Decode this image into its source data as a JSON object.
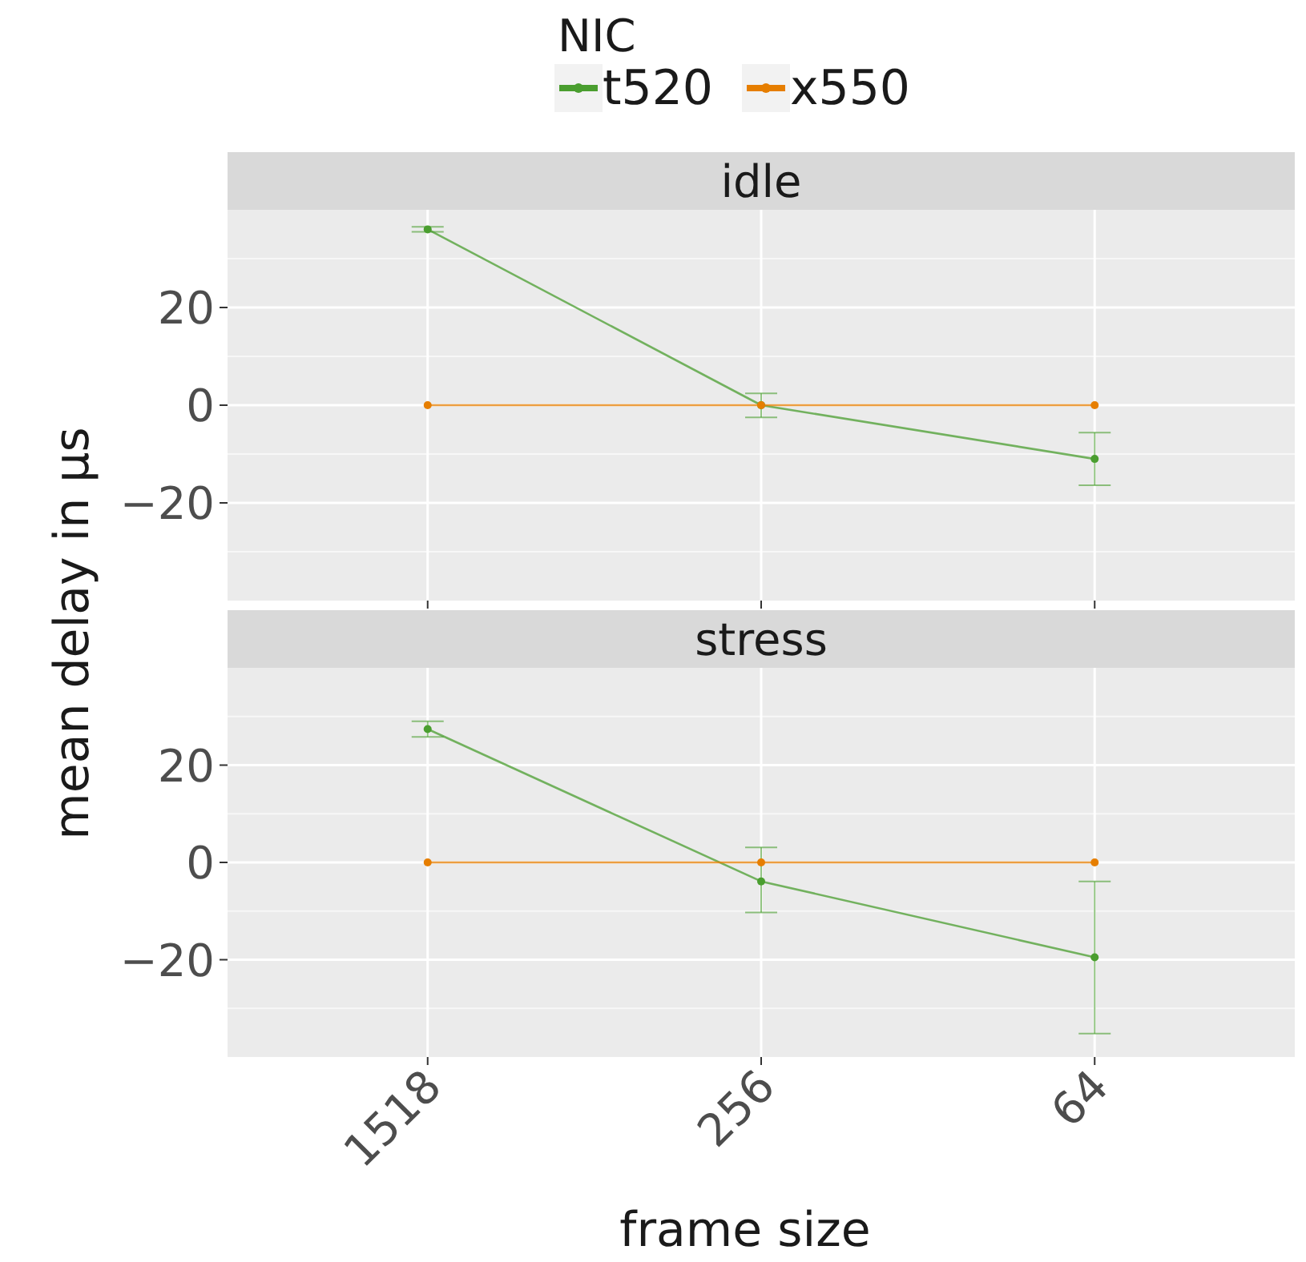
{
  "chart_data": [
    {
      "type": "line",
      "title": "idle",
      "ylabel": "mean delay in µs",
      "legend_title": "NIC",
      "legend": "top",
      "categories": [
        "1518",
        "256",
        "64"
      ],
      "ylim": [
        -40,
        40
      ],
      "yticks": [
        -20,
        0,
        20
      ],
      "grid": true,
      "marker": "circle",
      "tick_labels": "y",
      "series": [
        {
          "name": "t520",
          "color": "#4a9e2f",
          "values": [
            36,
            0,
            -11
          ],
          "errors": [
            [
              35.5,
              36.5
            ],
            [
              -2.5,
              2.4
            ],
            [
              -16.4,
              -5.6
            ]
          ]
        },
        {
          "name": "x550",
          "color": "#e67e00",
          "values": [
            0,
            0,
            0
          ]
        }
      ]
    },
    {
      "type": "line",
      "title": "stress",
      "xlabel": "frame size",
      "categories": [
        "1518",
        "256",
        "64"
      ],
      "ylim": [
        -40,
        40
      ],
      "yticks": [
        -20,
        0,
        20
      ],
      "grid": true,
      "marker": "circle",
      "series": [
        {
          "color": "#4a9e2f",
          "values": [
            27.4,
            -3.9,
            -19.5
          ],
          "errors": [
            [
              25.8,
              29
            ],
            [
              -10.3,
              3.1
            ],
            [
              -35.2,
              -3.9
            ]
          ]
        },
        {
          "color": "#e67e00",
          "values": [
            0,
            0,
            0
          ]
        }
      ]
    }
  ]
}
